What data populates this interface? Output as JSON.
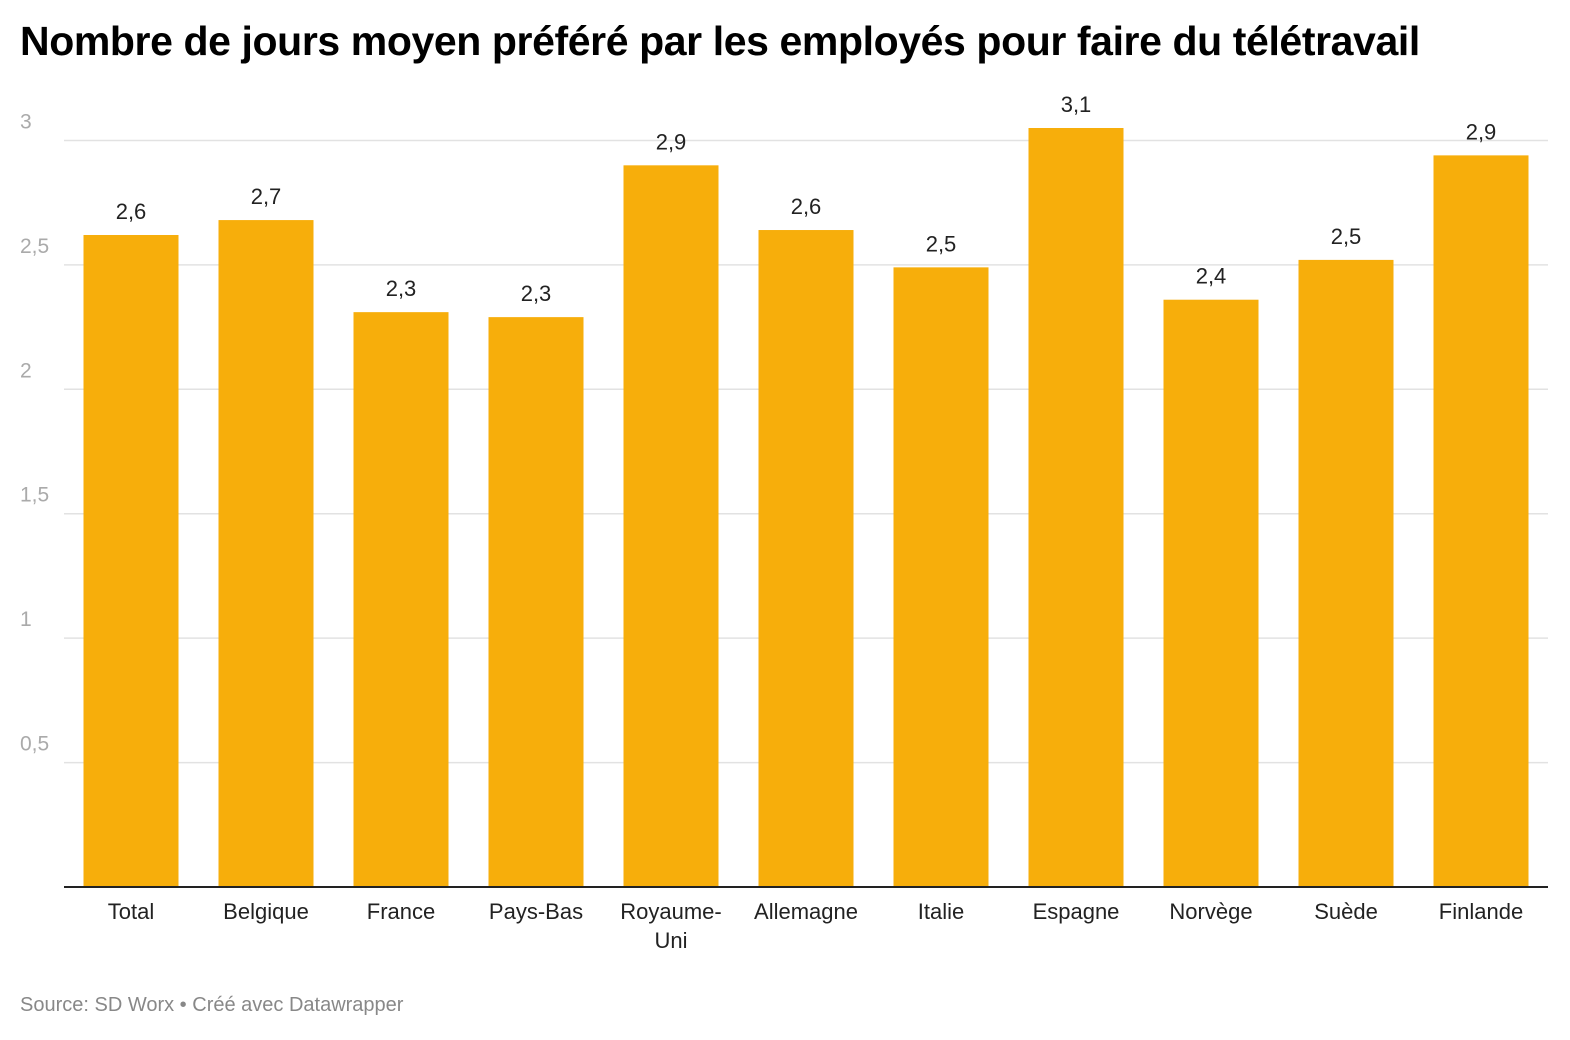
{
  "header": {
    "title": "Nombre de jours moyen préféré par les employés pour faire du télétravail"
  },
  "footer": {
    "source_prefix": "Source: ",
    "source_name": "SD Worx",
    "separator": " • ",
    "credit": "Créé avec Datawrapper"
  },
  "colors": {
    "bar": "#f7ae0b",
    "grid": "#e2e2e2",
    "axis": "#222222",
    "tick_label": "#aaaaaa",
    "category_label": "#222222",
    "value_label": "#222222"
  },
  "chart_data": {
    "type": "bar",
    "title": "Nombre de jours moyen préféré par les employés pour faire du télétravail",
    "xlabel": "",
    "ylabel": "",
    "categories": [
      [
        "Total"
      ],
      [
        "Belgique"
      ],
      [
        "France"
      ],
      [
        "Pays-Bas"
      ],
      [
        "Royaume-",
        "Uni"
      ],
      [
        "Allemagne"
      ],
      [
        "Italie"
      ],
      [
        "Espagne"
      ],
      [
        "Norvège"
      ],
      [
        "Suède"
      ],
      [
        "Finlande"
      ]
    ],
    "values": [
      2.62,
      2.68,
      2.31,
      2.29,
      2.9,
      2.64,
      2.49,
      3.05,
      2.36,
      2.52,
      2.94
    ],
    "value_labels": [
      "2,6",
      "2,7",
      "2,3",
      "2,3",
      "2,9",
      "2,6",
      "2,5",
      "3,1",
      "2,4",
      "2,5",
      "2,9"
    ],
    "ylim": [
      0,
      3.05
    ],
    "yticks": [
      0.5,
      1,
      1.5,
      2,
      2.5,
      3
    ],
    "ytick_labels": [
      "0,5",
      "1",
      "1,5",
      "2",
      "2,5",
      "3"
    ],
    "grid": true,
    "legend": "none"
  }
}
